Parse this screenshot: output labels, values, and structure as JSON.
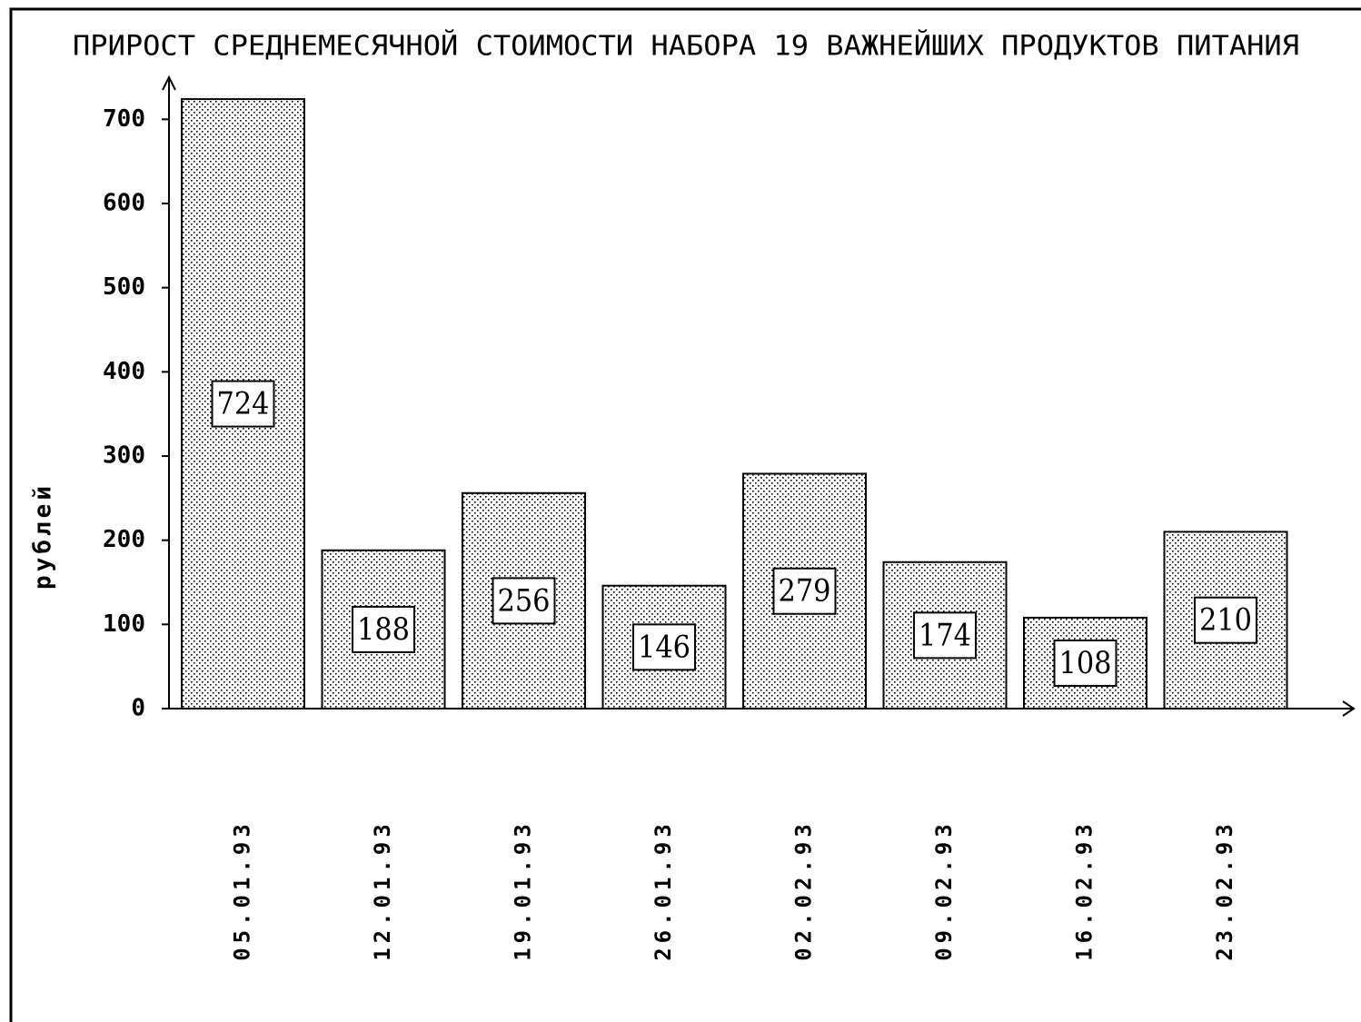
{
  "chart_data": {
    "type": "bar",
    "title": "ПРИРОСТ СРЕДНЕМЕСЯЧНОЙ СТОИМОСТИ НАБОРА 19 ВАЖНЕЙШИХ ПРОДУКТОВ ПИТАНИЯ",
    "y_label": "рублей",
    "categories": [
      "05.01.93",
      "12.01.93",
      "19.01.93",
      "26.01.93",
      "02.02.93",
      "09.02.93",
      "16.02.93",
      "23.02.93"
    ],
    "values": [
      724,
      188,
      256,
      146,
      279,
      174,
      108,
      210
    ],
    "color": "#000000",
    "ylim": [
      0,
      750
    ],
    "yticks": [
      0,
      100,
      200,
      300,
      400,
      500,
      600,
      700
    ],
    "grid": false
  }
}
